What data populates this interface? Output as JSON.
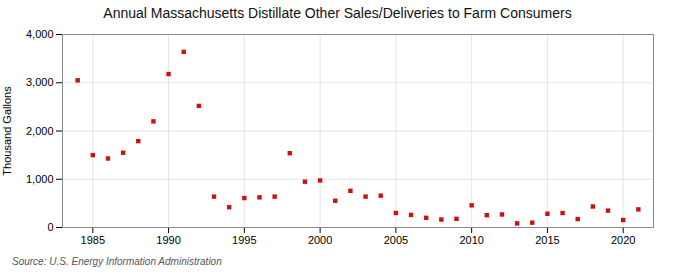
{
  "chart_data": {
    "type": "scatter",
    "title": "Annual Massachusetts Distillate Other Sales/Deliveries to Farm Consumers",
    "ylabel": "Thousand Gallons",
    "source": "Source: U.S. Energy Information Administration",
    "x": [
      1984,
      1985,
      1986,
      1987,
      1988,
      1989,
      1990,
      1991,
      1992,
      1993,
      1994,
      1995,
      1996,
      1997,
      1998,
      1999,
      2000,
      2001,
      2002,
      2003,
      2004,
      2005,
      2006,
      2007,
      2008,
      2009,
      2010,
      2011,
      2012,
      2013,
      2014,
      2015,
      2016,
      2017,
      2018,
      2019,
      2020,
      2021
    ],
    "values": [
      3050,
      1500,
      1430,
      1550,
      1790,
      2200,
      3180,
      3640,
      2520,
      640,
      420,
      610,
      625,
      640,
      1540,
      950,
      975,
      555,
      760,
      640,
      660,
      300,
      260,
      200,
      165,
      180,
      460,
      255,
      270,
      85,
      100,
      285,
      300,
      175,
      435,
      350,
      155,
      375
    ],
    "color": "#cc1111",
    "marker": "square",
    "xlim": [
      1983.0,
      2022.0
    ],
    "xticks": [
      1985,
      1990,
      1995,
      2000,
      2005,
      2010,
      2015,
      2020
    ],
    "ylim": [
      0,
      4000
    ],
    "yticks": [
      0,
      {
        "value": 1000,
        "label": "1,000"
      },
      {
        "value": 2000,
        "label": "2,000"
      },
      {
        "value": 3000,
        "label": "3,000"
      },
      {
        "value": 4000,
        "label": "4,000"
      }
    ],
    "grid": true
  }
}
